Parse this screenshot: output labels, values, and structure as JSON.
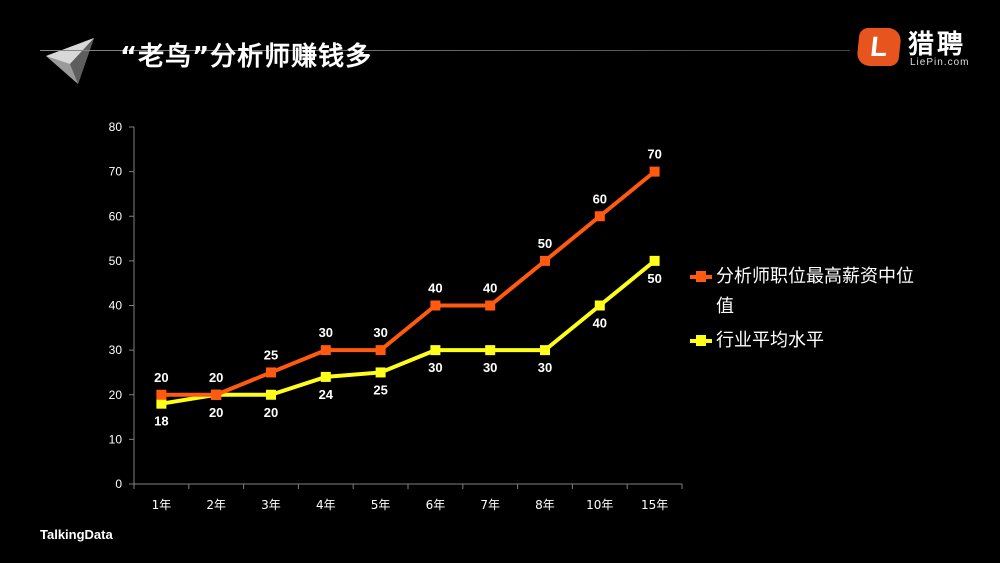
{
  "header": {
    "title": "“老鸟”分析师赚钱多",
    "logo_cn": "猎聘",
    "logo_en": "LiePin.com",
    "logo_letter": "L"
  },
  "footer": {
    "brand": "TalkingData"
  },
  "colors": {
    "series1": "#ff5a10",
    "series2": "#ffff1a",
    "axis": "#7f7f7f"
  },
  "chart_data": {
    "type": "line",
    "categories": [
      "1年",
      "2年",
      "3年",
      "4年",
      "5年",
      "6年",
      "7年",
      "8年",
      "10年",
      "15年"
    ],
    "series": [
      {
        "name": "分析师职位最高薪资中位值",
        "values": [
          20,
          20,
          25,
          30,
          30,
          40,
          40,
          50,
          60,
          70
        ],
        "label_position": "above"
      },
      {
        "name": "行业平均水平",
        "values": [
          18,
          20,
          20,
          24,
          25,
          30,
          30,
          30,
          40,
          50
        ],
        "label_position": "below"
      }
    ],
    "yticks": [
      0,
      10,
      20,
      30,
      40,
      50,
      60,
      70,
      80
    ],
    "ylim": [
      0,
      80
    ],
    "legend_position": "right",
    "grid": false
  }
}
